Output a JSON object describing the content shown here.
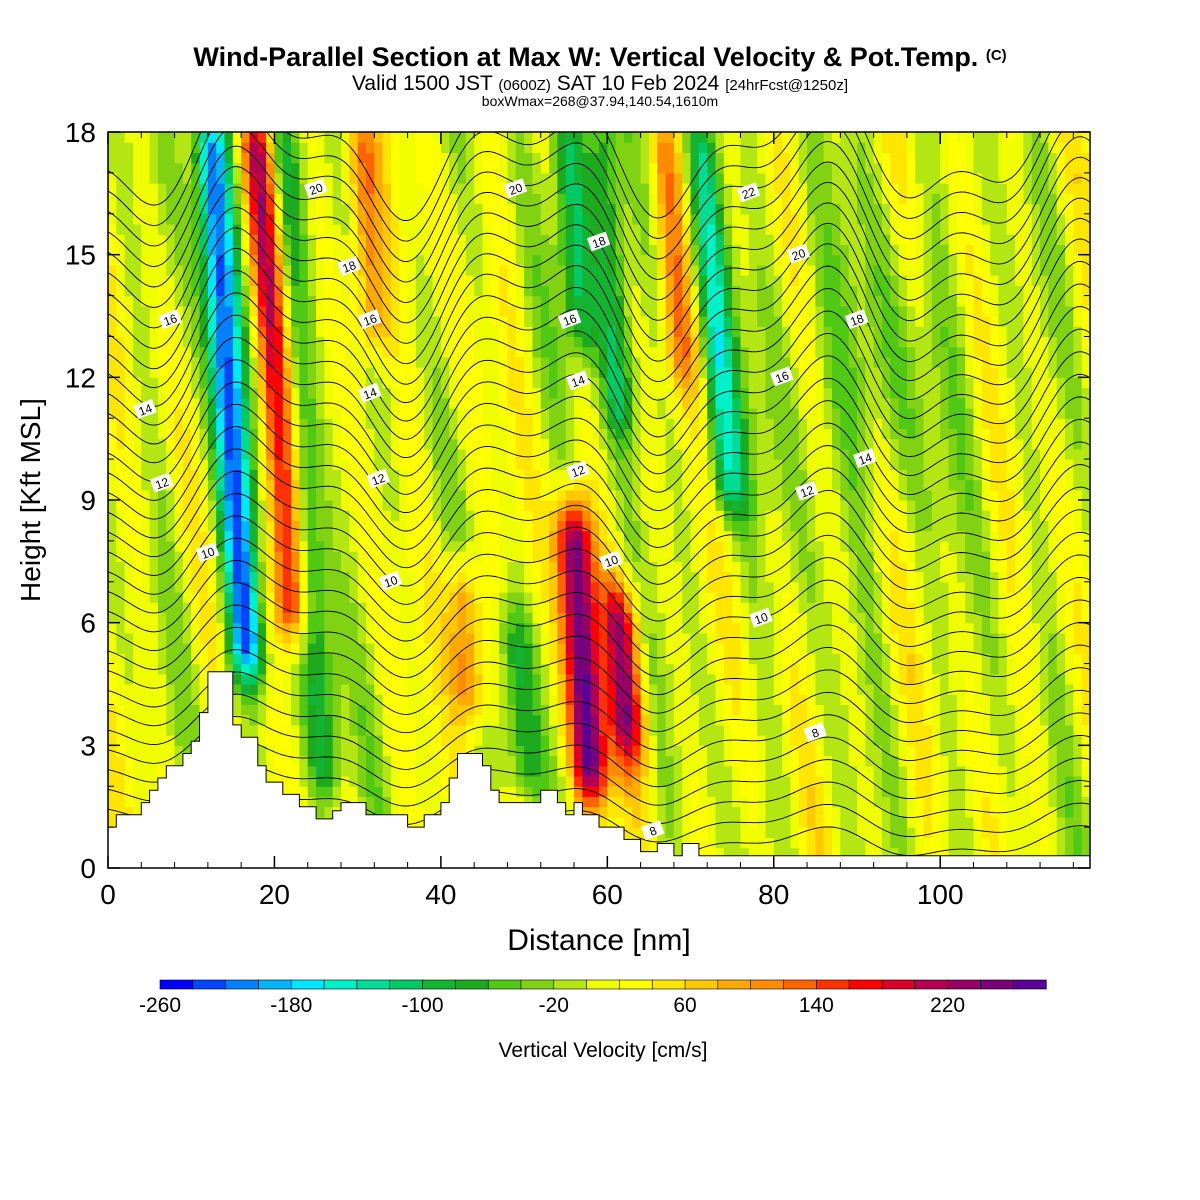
{
  "title": {
    "main": "Wind-Parallel Section at Max W: Vertical Velocity & Pot.Temp.",
    "copyright": "(C)",
    "valid_prefix": "Valid 1500 JST",
    "valid_utc": "(0600Z)",
    "valid_date": "SAT 10 Feb 2024",
    "forecast": "[24hrFcst@1250z]",
    "box_max": "boxWmax=268@37.94,140.54,1610m"
  },
  "chart_data": {
    "type": "heatmap",
    "xlabel": "Distance [nm]",
    "ylabel": "Height [Kft MSL]",
    "xlim": [
      0,
      118
    ],
    "ylim": [
      0,
      18
    ],
    "x_ticks": [
      0,
      20,
      40,
      60,
      80,
      100
    ],
    "y_ticks": [
      0,
      3,
      6,
      9,
      12,
      15,
      18
    ],
    "colorbar": {
      "label": "Vertical Velocity [cm/s]",
      "min": -260,
      "max": 280,
      "step": 20,
      "tick_labels": [
        -260,
        -180,
        -100,
        -20,
        60,
        140,
        220
      ],
      "colors": [
        "#0000ff",
        "#0046ff",
        "#0080ff",
        "#00b4ff",
        "#00e6ff",
        "#00f0c8",
        "#00dc96",
        "#00c864",
        "#14b432",
        "#1eaa1e",
        "#50c814",
        "#82d214",
        "#b4e614",
        "#f0ff00",
        "#ffff00",
        "#ffe600",
        "#ffc800",
        "#ffaa00",
        "#ff8c00",
        "#ff6400",
        "#ff3200",
        "#ff0000",
        "#dc0028",
        "#b40050",
        "#960064",
        "#780078",
        "#5a0096"
      ]
    },
    "vertical_velocity_features": [
      {
        "name": "downdraft",
        "x_center": 14.5,
        "w": -250,
        "z_range": [
          5,
          18
        ]
      },
      {
        "name": "updraft",
        "x_center": 20,
        "w": 200,
        "z_range": [
          6,
          18
        ]
      },
      {
        "name": "downdraft",
        "x_center": 23.5,
        "w": -110,
        "z_range": [
          2,
          18
        ]
      },
      {
        "name": "updraft",
        "x_center": 31,
        "w": 120,
        "z_range": [
          13,
          18
        ]
      },
      {
        "name": "updraft",
        "x_center": 43,
        "w": 130,
        "z_range": [
          4,
          7
        ]
      },
      {
        "name": "downdraft",
        "x_center": 49.5,
        "w": -90,
        "z_range": [
          2,
          6
        ]
      },
      {
        "name": "downdraft",
        "x_center": 56,
        "w": -120,
        "z_range": [
          13,
          18
        ]
      },
      {
        "name": "updraft",
        "x_center": 57,
        "w": 268,
        "z_range": [
          2,
          8.5
        ]
      },
      {
        "name": "updraft",
        "x_center": 62,
        "w": 190,
        "z_range": [
          3,
          6.5
        ]
      },
      {
        "name": "downdraft",
        "x_center": 60.5,
        "w": -120,
        "z_range": [
          11,
          18
        ]
      },
      {
        "name": "updraft",
        "x_center": 68,
        "w": 100,
        "z_range": [
          12,
          18
        ]
      },
      {
        "name": "downdraft",
        "x_center": 73,
        "w": -130,
        "z_range": [
          9,
          18
        ]
      }
    ],
    "potential_temperature_labels": [
      {
        "value": "20",
        "x": 25,
        "y": 16.6
      },
      {
        "value": "20",
        "x": 49,
        "y": 16.6
      },
      {
        "value": "22",
        "x": 77,
        "y": 16.5
      },
      {
        "value": "18",
        "x": 29,
        "y": 14.7
      },
      {
        "value": "18",
        "x": 59,
        "y": 15.3
      },
      {
        "value": "20",
        "x": 83,
        "y": 15.0
      },
      {
        "value": "16",
        "x": 7.5,
        "y": 13.4
      },
      {
        "value": "16",
        "x": 31.5,
        "y": 13.4
      },
      {
        "value": "16",
        "x": 55.5,
        "y": 13.4
      },
      {
        "value": "18",
        "x": 90,
        "y": 13.4
      },
      {
        "value": "16",
        "x": 81,
        "y": 12.0
      },
      {
        "value": "14",
        "x": 4.5,
        "y": 11.2
      },
      {
        "value": "14",
        "x": 31.5,
        "y": 11.6
      },
      {
        "value": "14",
        "x": 56.5,
        "y": 11.9
      },
      {
        "value": "14",
        "x": 91,
        "y": 10.0
      },
      {
        "value": "12",
        "x": 6.5,
        "y": 9.4
      },
      {
        "value": "12",
        "x": 32.5,
        "y": 9.5
      },
      {
        "value": "12",
        "x": 56.5,
        "y": 9.7
      },
      {
        "value": "12",
        "x": 84,
        "y": 9.2
      },
      {
        "value": "10",
        "x": 12,
        "y": 7.7
      },
      {
        "value": "10",
        "x": 34,
        "y": 7.0
      },
      {
        "value": "10",
        "x": 60.5,
        "y": 7.5
      },
      {
        "value": "10",
        "x": 78.5,
        "y": 6.1
      },
      {
        "value": "8",
        "x": 85,
        "y": 3.3
      },
      {
        "value": "8",
        "x": 65.5,
        "y": 0.9
      }
    ],
    "terrain_height": [
      [
        0,
        1.0
      ],
      [
        1,
        1.0
      ],
      [
        1,
        1.3
      ],
      [
        4,
        1.3
      ],
      [
        4,
        1.6
      ],
      [
        5,
        1.6
      ],
      [
        5,
        1.9
      ],
      [
        6,
        1.9
      ],
      [
        6,
        2.2
      ],
      [
        7,
        2.2
      ],
      [
        7,
        2.5
      ],
      [
        9,
        2.5
      ],
      [
        9,
        2.8
      ],
      [
        10,
        2.8
      ],
      [
        10,
        3.1
      ],
      [
        11,
        3.1
      ],
      [
        11,
        3.8
      ],
      [
        12,
        3.8
      ],
      [
        12,
        4.8
      ],
      [
        15,
        4.8
      ],
      [
        15,
        3.5
      ],
      [
        16,
        3.5
      ],
      [
        16,
        3.2
      ],
      [
        18,
        3.2
      ],
      [
        18,
        2.5
      ],
      [
        19,
        2.5
      ],
      [
        19,
        2.1
      ],
      [
        21,
        2.1
      ],
      [
        21,
        1.8
      ],
      [
        23,
        1.8
      ],
      [
        23,
        1.5
      ],
      [
        25,
        1.5
      ],
      [
        25,
        1.2
      ],
      [
        27,
        1.2
      ],
      [
        27,
        1.4
      ],
      [
        28,
        1.4
      ],
      [
        28,
        1.6
      ],
      [
        31,
        1.6
      ],
      [
        31,
        1.3
      ],
      [
        36,
        1.3
      ],
      [
        36,
        1.0
      ],
      [
        38,
        1.0
      ],
      [
        38,
        1.3
      ],
      [
        40,
        1.3
      ],
      [
        40,
        1.6
      ],
      [
        41,
        1.6
      ],
      [
        41,
        2.2
      ],
      [
        42,
        2.2
      ],
      [
        42,
        2.8
      ],
      [
        45,
        2.8
      ],
      [
        45,
        2.5
      ],
      [
        46,
        2.5
      ],
      [
        46,
        1.9
      ],
      [
        47,
        1.9
      ],
      [
        47,
        1.6
      ],
      [
        52,
        1.6
      ],
      [
        52,
        1.9
      ],
      [
        54,
        1.9
      ],
      [
        54,
        1.6
      ],
      [
        55,
        1.6
      ],
      [
        55,
        1.3
      ],
      [
        56,
        1.3
      ],
      [
        56,
        1.6
      ],
      [
        57,
        1.6
      ],
      [
        57,
        1.3
      ],
      [
        59,
        1.3
      ],
      [
        59,
        1.0
      ],
      [
        62,
        1.0
      ],
      [
        62,
        0.7
      ],
      [
        64,
        0.7
      ],
      [
        64,
        0.4
      ],
      [
        66,
        0.4
      ],
      [
        66,
        0.6
      ],
      [
        68,
        0.6
      ],
      [
        68,
        0.3
      ],
      [
        69,
        0.3
      ],
      [
        69,
        0.6
      ],
      [
        71,
        0.6
      ],
      [
        71,
        0.3
      ],
      [
        72,
        0.3
      ],
      [
        72,
        0.3
      ],
      [
        118,
        0.3
      ]
    ]
  }
}
